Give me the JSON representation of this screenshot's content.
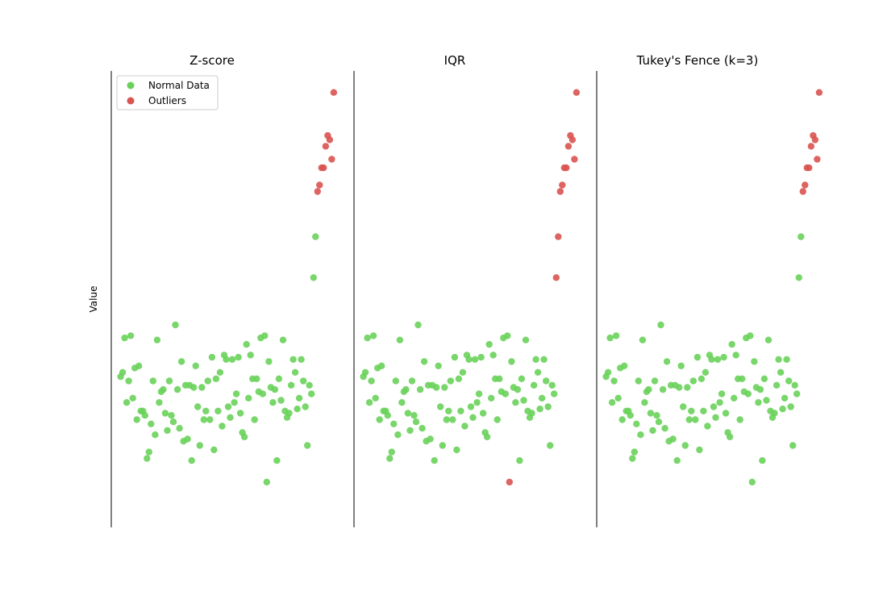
{
  "chart_data": {
    "type": "scatter",
    "ylabel": "Value",
    "legend": [
      {
        "label": "Normal Data",
        "color": "#69d15a"
      },
      {
        "label": "Outliers",
        "color": "#d9534f"
      }
    ],
    "ylim": [
      -3.4,
      7.2
    ],
    "panels": [
      {
        "title": "Z-score",
        "method": "zscore"
      },
      {
        "title": "IQR",
        "method": "iqr"
      },
      {
        "title": "Tukey's Fence (k=3)",
        "method": "tukey"
      }
    ],
    "normal_points": [
      [
        0,
        0.1
      ],
      [
        1,
        0.2
      ],
      [
        2,
        1.0
      ],
      [
        3,
        -0.5
      ],
      [
        4,
        0.0
      ],
      [
        5,
        1.05
      ],
      [
        6,
        -0.4
      ],
      [
        7,
        0.3
      ],
      [
        8,
        -0.9
      ],
      [
        9,
        0.35
      ],
      [
        10,
        -0.7
      ],
      [
        11,
        -0.7
      ],
      [
        12,
        -0.8
      ],
      [
        13,
        -1.8
      ],
      [
        14,
        -1.65
      ],
      [
        15,
        -1.0
      ],
      [
        16,
        0.0
      ],
      [
        17,
        -1.25
      ],
      [
        18,
        0.95
      ],
      [
        19,
        -0.5
      ],
      [
        20,
        -0.25
      ],
      [
        21,
        -0.2
      ],
      [
        22,
        -0.75
      ],
      [
        23,
        -1.15
      ],
      [
        24,
        0.0
      ],
      [
        25,
        -0.8
      ],
      [
        26,
        -0.95
      ],
      [
        27,
        1.3
      ],
      [
        28,
        -0.2
      ],
      [
        29,
        -1.1
      ],
      [
        30,
        0.45
      ],
      [
        31,
        -1.4
      ],
      [
        32,
        -0.1
      ],
      [
        33,
        -1.35
      ],
      [
        34,
        -0.1
      ],
      [
        35,
        -1.85
      ],
      [
        36,
        -0.15
      ],
      [
        37,
        0.35
      ],
      [
        38,
        -0.6
      ],
      [
        39,
        -1.5
      ],
      [
        40,
        -0.15
      ],
      [
        41,
        -0.9
      ],
      [
        42,
        -0.7
      ],
      [
        43,
        0.0
      ],
      [
        44,
        -0.9
      ],
      [
        45,
        0.55
      ],
      [
        46,
        -1.6
      ],
      [
        47,
        0.05
      ],
      [
        48,
        -0.7
      ],
      [
        49,
        0.2
      ],
      [
        50,
        -1.05
      ],
      [
        51,
        0.6
      ],
      [
        52,
        0.5
      ],
      [
        53,
        -0.6
      ],
      [
        54,
        -0.85
      ],
      [
        55,
        0.5
      ],
      [
        56,
        -0.5
      ],
      [
        57,
        -0.3
      ],
      [
        58,
        0.55
      ],
      [
        59,
        -0.75
      ],
      [
        60,
        -1.2
      ],
      [
        61,
        -1.3
      ],
      [
        62,
        0.85
      ],
      [
        63,
        -0.4
      ],
      [
        64,
        0.6
      ],
      [
        65,
        0.05
      ],
      [
        66,
        -0.9
      ],
      [
        67,
        0.05
      ],
      [
        68,
        -0.25
      ],
      [
        69,
        1.0
      ],
      [
        70,
        -0.3
      ],
      [
        71,
        1.05
      ],
      [
        72,
        -2.35
      ],
      [
        73,
        0.45
      ],
      [
        74,
        -0.15
      ],
      [
        75,
        -0.5
      ],
      [
        76,
        -0.2
      ],
      [
        77,
        -1.85
      ],
      [
        78,
        0.05
      ],
      [
        79,
        -0.45
      ],
      [
        80,
        0.95
      ],
      [
        81,
        -0.7
      ],
      [
        82,
        -0.85
      ],
      [
        83,
        -0.75
      ],
      [
        84,
        -0.1
      ],
      [
        85,
        0.5
      ],
      [
        86,
        0.2
      ],
      [
        87,
        -0.65
      ],
      [
        88,
        -0.4
      ],
      [
        89,
        0.5
      ],
      [
        90,
        0.0
      ],
      [
        91,
        -0.6
      ],
      [
        92,
        -1.5
      ],
      [
        93,
        -0.1
      ],
      [
        94,
        -0.3
      ]
    ],
    "extreme_points": [
      [
        95,
        2.4
      ],
      [
        96,
        3.35
      ],
      [
        97,
        4.4
      ],
      [
        98,
        4.55
      ],
      [
        99,
        4.95
      ],
      [
        100,
        4.95
      ],
      [
        101,
        5.45
      ],
      [
        102,
        5.7
      ],
      [
        103,
        5.6
      ],
      [
        104,
        5.15
      ],
      [
        105,
        6.7
      ]
    ],
    "low_extreme_point": [
      72,
      -2.35
    ],
    "outlier_indices": {
      "zscore": [
        97,
        98,
        99,
        100,
        101,
        102,
        103,
        104,
        105
      ],
      "iqr": [
        72,
        95,
        96,
        97,
        98,
        99,
        100,
        101,
        102,
        103,
        104,
        105
      ],
      "tukey": [
        97,
        98,
        99,
        100,
        101,
        102,
        103,
        104,
        105
      ]
    }
  }
}
